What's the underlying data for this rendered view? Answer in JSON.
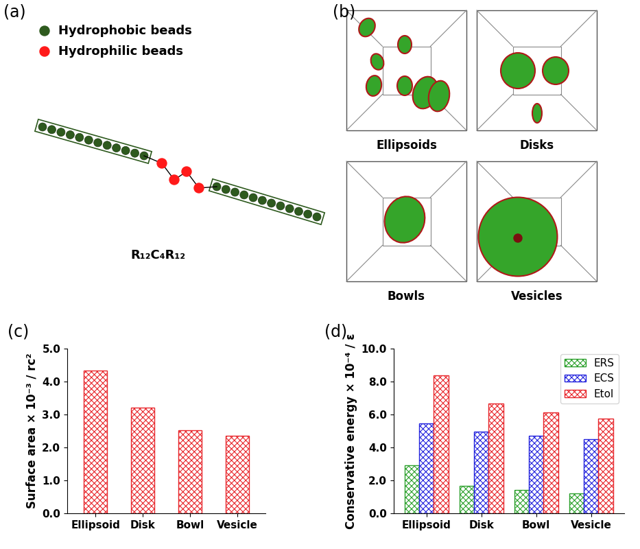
{
  "panels": {
    "a": {
      "label": "(a)",
      "legend": [
        {
          "text": "Hydrophobic beads",
          "color": "#2e5a1e"
        },
        {
          "text": "Hydrophilic beads",
          "color": "#ff1a1a"
        }
      ],
      "molecule": "R₁₂C₄R₁₂",
      "tail_beads": 12,
      "head_beads": 4
    },
    "b": {
      "label": "(b)",
      "snapshots": [
        "Ellipsoids",
        "Disks",
        "Bowls",
        "Vesicles"
      ]
    }
  },
  "chart_data": [
    {
      "type": "bar",
      "title": "(c)",
      "categories": [
        "Ellipsoid",
        "Disk",
        "Bowl",
        "Vesicle"
      ],
      "values": [
        4.33,
        3.2,
        2.52,
        2.36
      ],
      "color": "#e8262b",
      "ylabel": "Surface area × 10⁻³ / rc²",
      "ylim": [
        0,
        5
      ],
      "yticks": [
        {
          "value": 0,
          "label": "0.0"
        },
        {
          "value": 1,
          "label": "1.0"
        },
        {
          "value": 2,
          "label": "2.0"
        },
        {
          "value": 3,
          "label": "3.0"
        },
        {
          "value": 4,
          "label": "4.0"
        },
        {
          "value": 5,
          "label": "5.0"
        }
      ],
      "grid": false
    },
    {
      "type": "bar",
      "title": "(d)",
      "categories": [
        "Ellipsoid",
        "Disk",
        "Bowl",
        "Vesicle"
      ],
      "series": [
        {
          "name": "ERS",
          "color": "#2ca02c",
          "values": [
            2.92,
            1.68,
            1.4,
            1.22
          ]
        },
        {
          "name": "ECS",
          "color": "#2222dd",
          "values": [
            5.45,
            4.97,
            4.72,
            4.52
          ]
        },
        {
          "name": "Etol",
          "color": "#e8262b",
          "values": [
            8.38,
            6.65,
            6.13,
            5.73
          ]
        }
      ],
      "ylabel": "Conservative energy × 10⁻⁴ / ε",
      "ylim": [
        0,
        10
      ],
      "yticks": [
        {
          "value": 0,
          "label": "0.0"
        },
        {
          "value": 2,
          "label": "2.0"
        },
        {
          "value": 4,
          "label": "4.0"
        },
        {
          "value": 6,
          "label": "6.0"
        },
        {
          "value": 8,
          "label": "8.0"
        },
        {
          "value": 10,
          "label": "10.0"
        }
      ],
      "legend": "upper right",
      "grid": false
    }
  ]
}
